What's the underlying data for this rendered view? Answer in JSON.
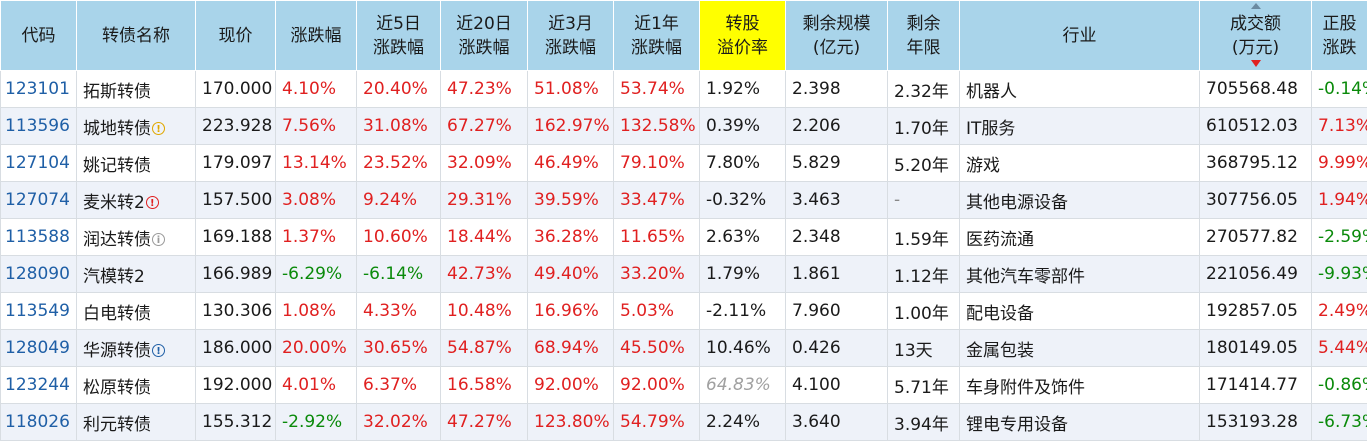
{
  "headers": {
    "code": "代码",
    "name": "转债名称",
    "price": "现价",
    "chg": "涨跌幅",
    "chg5d_1": "近5日",
    "chg5d_2": "涨跌幅",
    "chg20d_1": "近20日",
    "chg20d_2": "涨跌幅",
    "chg3m_1": "近3月",
    "chg3m_2": "涨跌幅",
    "chg1y_1": "近1年",
    "chg1y_2": "涨跌幅",
    "premium_1": "转股",
    "premium_2": "溢价率",
    "scale_1": "剩余规模",
    "scale_2": "(亿元)",
    "term_1": "剩余",
    "term_2": "年限",
    "industry": "行业",
    "volume_1": "成交额",
    "volume_2": "(万元)",
    "stock_chg_1": "正股",
    "stock_chg_2": "涨跌"
  },
  "rows": [
    {
      "code": "123101",
      "name": "拓斯转债",
      "badge": "",
      "price": "170.000",
      "chg": "4.10%",
      "chg5d": "20.40%",
      "chg20d": "47.23%",
      "chg3m": "51.08%",
      "chg1y": "53.74%",
      "premium": "1.92%",
      "scale": "2.398",
      "term": "2.32年",
      "industry": "机器人",
      "volume": "705568.48",
      "stock_chg": "-0.14%"
    },
    {
      "code": "113596",
      "name": "城地转债",
      "badge": "yellow",
      "price": "223.928",
      "chg": "7.56%",
      "chg5d": "31.08%",
      "chg20d": "67.27%",
      "chg3m": "162.97%",
      "chg1y": "132.58%",
      "premium": "0.39%",
      "scale": "2.206",
      "term": "1.70年",
      "industry": "IT服务",
      "volume": "610512.03",
      "stock_chg": "7.13%"
    },
    {
      "code": "127104",
      "name": "姚记转债",
      "badge": "",
      "price": "179.097",
      "chg": "13.14%",
      "chg5d": "23.52%",
      "chg20d": "32.09%",
      "chg3m": "46.49%",
      "chg1y": "79.10%",
      "premium": "7.80%",
      "scale": "5.829",
      "term": "5.20年",
      "industry": "游戏",
      "volume": "368795.12",
      "stock_chg": "9.99%"
    },
    {
      "code": "127074",
      "name": "麦米转2",
      "badge": "red",
      "price": "157.500",
      "chg": "3.08%",
      "chg5d": "9.24%",
      "chg20d": "29.31%",
      "chg3m": "39.59%",
      "chg1y": "33.47%",
      "premium": "-0.32%",
      "scale": "3.463",
      "term": "-",
      "industry": "其他电源设备",
      "volume": "307756.05",
      "stock_chg": "1.94%"
    },
    {
      "code": "113588",
      "name": "润达转债",
      "badge": "gray",
      "price": "169.188",
      "chg": "1.37%",
      "chg5d": "10.60%",
      "chg20d": "18.44%",
      "chg3m": "36.28%",
      "chg1y": "11.65%",
      "premium": "2.63%",
      "scale": "2.348",
      "term": "1.59年",
      "industry": "医药流通",
      "volume": "270577.82",
      "stock_chg": "-2.59%"
    },
    {
      "code": "128090",
      "name": "汽模转2",
      "badge": "",
      "price": "166.989",
      "chg": "-6.29%",
      "chg5d": "-6.14%",
      "chg20d": "42.73%",
      "chg3m": "49.40%",
      "chg1y": "33.20%",
      "premium": "1.79%",
      "scale": "1.861",
      "term": "1.12年",
      "industry": "其他汽车零部件",
      "volume": "221056.49",
      "stock_chg": "-9.93%"
    },
    {
      "code": "113549",
      "name": "白电转债",
      "badge": "",
      "price": "130.306",
      "chg": "1.08%",
      "chg5d": "4.33%",
      "chg20d": "10.48%",
      "chg3m": "16.96%",
      "chg1y": "5.03%",
      "premium": "-2.11%",
      "scale": "7.960",
      "term": "1.00年",
      "industry": "配电设备",
      "volume": "192857.05",
      "stock_chg": "2.49%"
    },
    {
      "code": "128049",
      "name": "华源转债",
      "badge": "blue",
      "price": "186.000",
      "chg": "20.00%",
      "chg5d": "30.65%",
      "chg20d": "54.87%",
      "chg3m": "68.94%",
      "chg1y": "45.50%",
      "premium": "10.46%",
      "scale": "0.426",
      "term": "13天",
      "industry": "金属包装",
      "volume": "180149.05",
      "stock_chg": "5.44%"
    },
    {
      "code": "123244",
      "name": "松原转债",
      "badge": "",
      "price": "192.000",
      "chg": "4.01%",
      "chg5d": "6.37%",
      "chg20d": "16.58%",
      "chg3m": "92.00%",
      "chg1y": "92.00%",
      "premium": "64.83%",
      "premium_style": "muted",
      "scale": "4.100",
      "term": "5.71年",
      "industry": "车身附件及饰件",
      "volume": "171414.77",
      "stock_chg": "-0.86%"
    },
    {
      "code": "118026",
      "name": "利元转债",
      "badge": "",
      "price": "155.312",
      "chg": "-2.92%",
      "chg5d": "32.02%",
      "chg20d": "47.27%",
      "chg3m": "123.80%",
      "chg1y": "54.79%",
      "premium": "2.24%",
      "scale": "3.640",
      "term": "3.94年",
      "industry": "锂电专用设备",
      "volume": "153193.28",
      "stock_chg": "-6.73%"
    }
  ],
  "badge_glyphs": {
    "yellow": "!",
    "red": "!",
    "gray": "i",
    "blue": "!"
  },
  "badge_icon_names": {
    "yellow": "warning-icon",
    "red": "alert-icon",
    "gray": "info-icon",
    "blue": "notice-icon"
  },
  "colors": {
    "header_bg": "#a9d4ea",
    "highlight": "#ffff00",
    "up": "#e02020",
    "down": "#0a8a0a",
    "code": "#1f5fa6"
  },
  "sort": {
    "column": "volume",
    "direction": "desc"
  }
}
